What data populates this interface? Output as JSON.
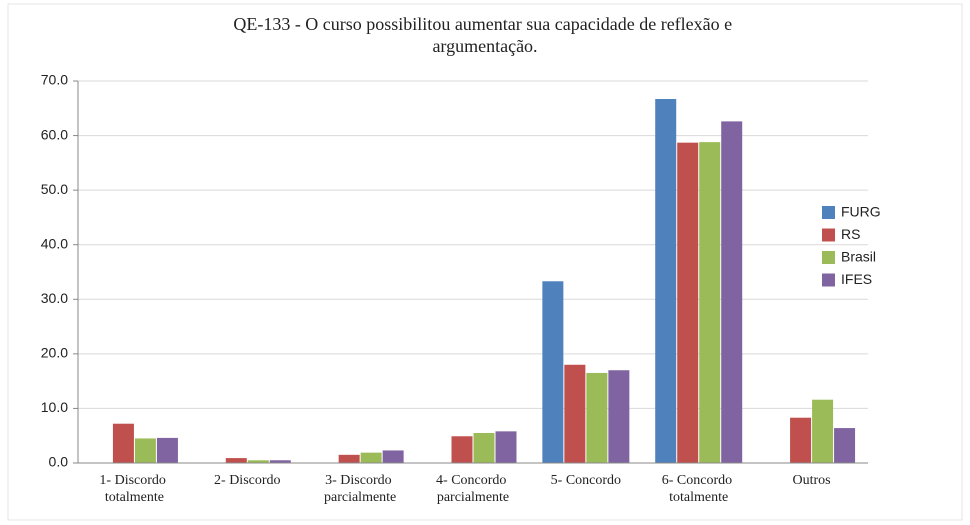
{
  "chart_data": {
    "type": "bar",
    "title": "QE-133 - O curso possibilitou aumentar sua capacidade de reflexão e argumentação.",
    "categories": [
      "1- Discordo totalmente",
      "2- Discordo",
      "3- Discordo parcialmente",
      "4- Concordo parcialmente",
      "5- Concordo",
      "6- Concordo totalmente",
      "Outros"
    ],
    "series": [
      {
        "name": "FURG",
        "color": "#4f81bd",
        "values": [
          0,
          0,
          0,
          0,
          33.3,
          66.7,
          0
        ]
      },
      {
        "name": "RS",
        "color": "#c0504d",
        "values": [
          7.2,
          0.9,
          1.5,
          4.9,
          18.0,
          58.7,
          8.3
        ]
      },
      {
        "name": "Brasil",
        "color": "#9bbb59",
        "values": [
          4.5,
          0.5,
          1.9,
          5.5,
          16.5,
          58.8,
          11.6
        ]
      },
      {
        "name": "IFES",
        "color": "#8064a2",
        "values": [
          4.6,
          0.5,
          2.3,
          5.8,
          17.0,
          62.6,
          6.4
        ]
      }
    ],
    "ylim": [
      0,
      70
    ],
    "yticks": [
      {
        "value": 0,
        "label": "0.0"
      },
      {
        "value": 10,
        "label": "10.0"
      },
      {
        "value": 20,
        "label": "20.0"
      },
      {
        "value": 30,
        "label": "30.0"
      },
      {
        "value": 40,
        "label": "40.0"
      },
      {
        "value": 50,
        "label": "50.0"
      },
      {
        "value": 60,
        "label": "60.0"
      },
      {
        "value": 70,
        "label": "70.0"
      }
    ],
    "grid": true,
    "legend": "right"
  }
}
